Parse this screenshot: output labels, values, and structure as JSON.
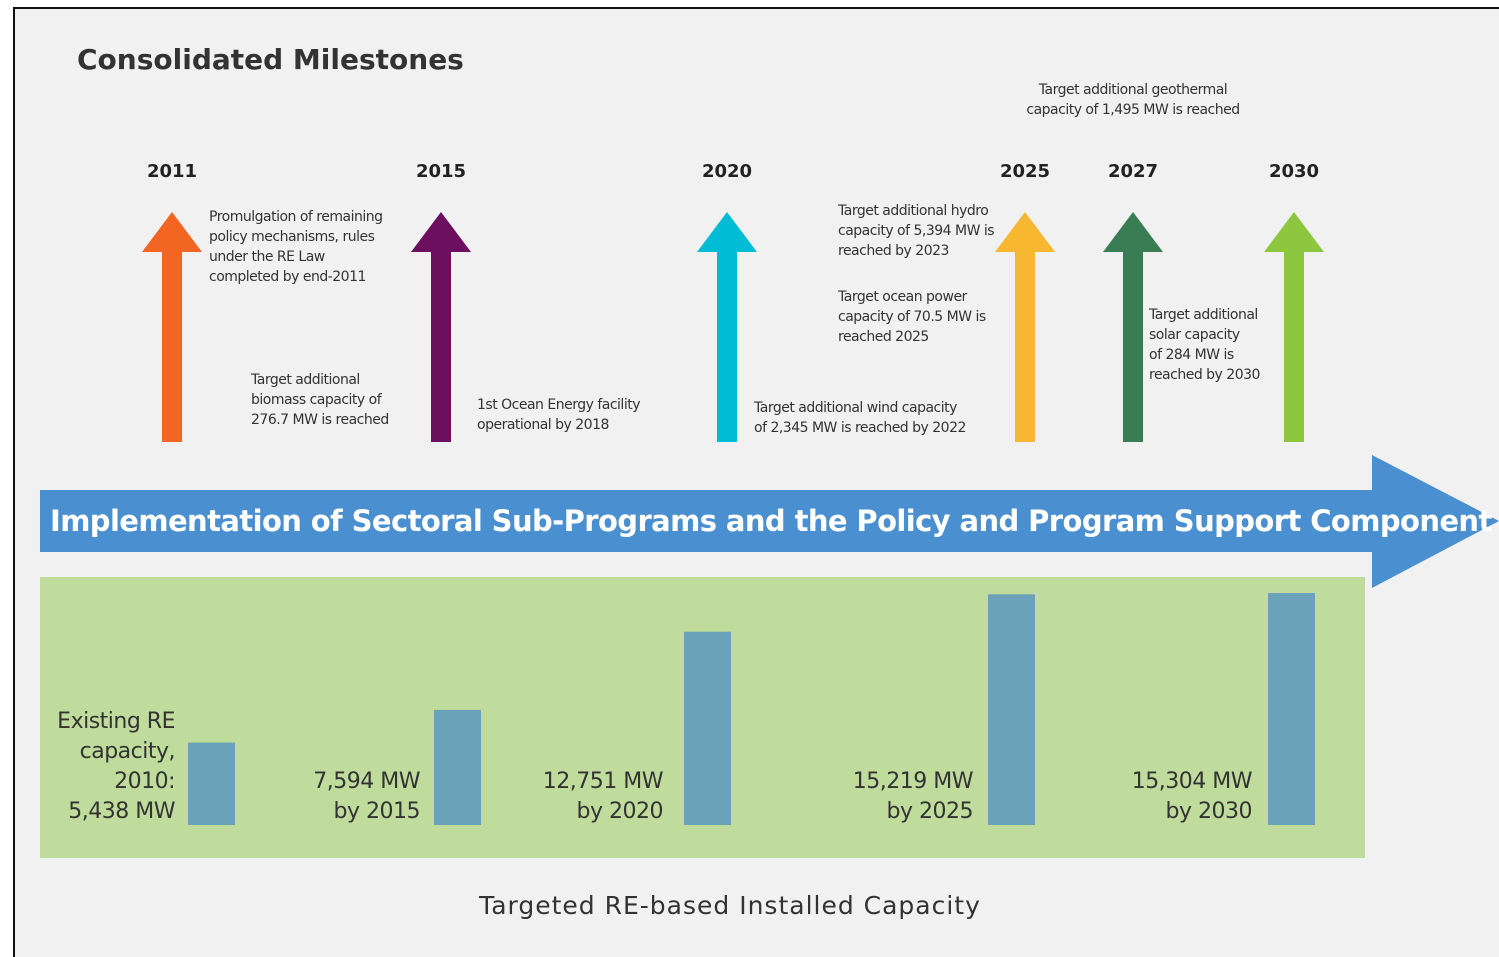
{
  "title": "Consolidated Milestones",
  "milestones": [
    {
      "year": "2011",
      "color": "#f26522"
    },
    {
      "year": "2015",
      "color": "#6b0f5e"
    },
    {
      "year": "2020",
      "color": "#00bcd4"
    },
    {
      "year": "2025",
      "color": "#f7b731"
    },
    {
      "year": "2027",
      "color": "#3a7d55"
    },
    {
      "year": "2030",
      "color": "#8dc63f"
    }
  ],
  "notes": [
    [
      "Promulgation of remaining",
      "policy mechanisms, rules",
      "under the RE Law",
      "completed by end-2011"
    ],
    [
      "Target additional",
      "biomass capacity of",
      "276.7 MW is reached"
    ],
    [
      "1st Ocean Energy facility",
      "operational by 2018"
    ],
    [
      "Target additional wind capacity",
      "of 2,345 MW is reached by 2022"
    ],
    [
      "Target additional hydro",
      "capacity of 5,394 MW is",
      "reached by 2023"
    ],
    [
      "Target ocean power",
      "capacity of 70.5 MW is",
      "reached 2025"
    ],
    [
      "Target additional",
      "solar capacity",
      "of 284 MW is",
      "reached by 2030"
    ],
    [
      "Target additional geothermal",
      "capacity of 1,495 MW is reached"
    ]
  ],
  "banner": "Implementation of Sectoral Sub-Programs and the Policy and Program Support Component",
  "capacity": {
    "caption": "Targeted RE-based Installed Capacity",
    "color": "#6aa3b9",
    "bars": [
      {
        "lines": [
          "Existing RE",
          "capacity,",
          "2010:",
          "5,438 MW"
        ],
        "value": 5438
      },
      {
        "lines": [
          "7,594 MW",
          "by 2015"
        ],
        "value": 7594
      },
      {
        "lines": [
          "12,751 MW",
          "by 2020"
        ],
        "value": 12751
      },
      {
        "lines": [
          "15,219 MW",
          "by 2025"
        ],
        "value": 15219
      },
      {
        "lines": [
          "15,304 MW",
          "by 2030"
        ],
        "value": 15304
      }
    ]
  }
}
